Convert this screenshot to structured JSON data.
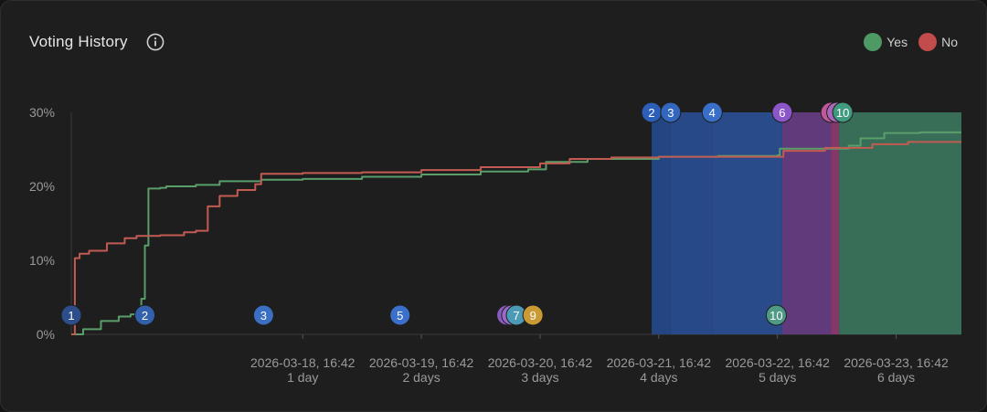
{
  "card": {
    "title": "Voting History"
  },
  "legend": [
    {
      "label": "Yes",
      "color": "#4e9a64"
    },
    {
      "label": "No",
      "color": "#c24c4c"
    }
  ],
  "chart_data": {
    "type": "line",
    "x_unit": "days",
    "xlim": [
      -0.95,
      6.55
    ],
    "ylim": [
      0,
      30
    ],
    "ylabel_ticks": [
      {
        "value": 0,
        "label": "0%"
      },
      {
        "value": 10,
        "label": "10%"
      },
      {
        "value": 20,
        "label": "20%"
      },
      {
        "value": 30,
        "label": "30%"
      }
    ],
    "x_ticks": [
      {
        "x": 1,
        "label": "2026-03-18, 16:42",
        "sublabel": "1 day"
      },
      {
        "x": 2,
        "label": "2026-03-19, 16:42",
        "sublabel": "2 days"
      },
      {
        "x": 3,
        "label": "2026-03-20, 16:42",
        "sublabel": "3 days"
      },
      {
        "x": 4,
        "label": "2026-03-21, 16:42",
        "sublabel": "4 days"
      },
      {
        "x": 5,
        "label": "2026-03-22, 16:42",
        "sublabel": "5 days"
      },
      {
        "x": 6,
        "label": "2026-03-23, 16:42",
        "sublabel": "6 days"
      }
    ],
    "series": [
      {
        "name": "Yes",
        "color": "#5a9e6a",
        "x": [
          -0.95,
          -0.85,
          -0.7,
          -0.55,
          -0.45,
          -0.36,
          -0.33,
          -0.3,
          -0.2,
          -0.15,
          0.1,
          0.3,
          0.65,
          1.0,
          1.5,
          2.0,
          2.5,
          2.9,
          3.05,
          3.4,
          4.0,
          4.5,
          5.0,
          5.02,
          5.6,
          5.7,
          5.9,
          6.2,
          6.55
        ],
        "y": [
          0,
          0.7,
          1.8,
          2.4,
          2.7,
          4.8,
          12,
          19.7,
          19.8,
          20.0,
          20.2,
          20.7,
          20.9,
          21.0,
          21.3,
          21.6,
          22.0,
          22.3,
          23.3,
          23.7,
          24.0,
          24.1,
          24.2,
          25.1,
          25.5,
          26.5,
          27.2,
          27.3,
          27.3
        ]
      },
      {
        "name": "No",
        "color": "#c25b52",
        "x": [
          -0.95,
          -0.92,
          -0.88,
          -0.8,
          -0.65,
          -0.5,
          -0.4,
          -0.2,
          0.0,
          0.1,
          0.2,
          0.3,
          0.45,
          0.6,
          0.65,
          1.0,
          1.5,
          2.0,
          2.5,
          3.0,
          3.25,
          3.6,
          4.0,
          4.5,
          5.0,
          5.05,
          5.4,
          5.8,
          6.1,
          6.55
        ],
        "y": [
          0,
          10.3,
          10.9,
          11.3,
          12.3,
          13.0,
          13.3,
          13.4,
          13.8,
          14.0,
          17.3,
          18.7,
          19.5,
          20.3,
          21.7,
          21.8,
          21.9,
          22.2,
          22.6,
          23.1,
          23.7,
          23.9,
          24.0,
          24.0,
          24.0,
          24.8,
          25.2,
          25.7,
          26.0,
          26.0
        ]
      }
    ],
    "markers_bottom": [
      {
        "x": -0.95,
        "label": "1",
        "color": "#2c4f8c"
      },
      {
        "x": -0.33,
        "label": "2",
        "color": "#3360ad"
      },
      {
        "x": 0.67,
        "label": "3",
        "color": "#3a6fc4"
      },
      {
        "x": 1.82,
        "label": "5",
        "color": "#3a70cc"
      },
      {
        "x": 2.72,
        "label": "",
        "color": "#8b5bc2"
      },
      {
        "x": 2.76,
        "label": "",
        "color": "#9b6ac8"
      },
      {
        "x": 2.8,
        "label": "7",
        "color": "#4b9bb7"
      },
      {
        "x": 2.94,
        "label": "9",
        "color": "#cc9a35"
      },
      {
        "x": 4.99,
        "label": "10",
        "color": "#4e9a85"
      }
    ],
    "markers_top": [
      {
        "x": 3.94,
        "label": "2",
        "color": "#2c5fb7"
      },
      {
        "x": 4.1,
        "label": "3",
        "color": "#3366bd"
      },
      {
        "x": 4.45,
        "label": "4",
        "color": "#3a6fc9"
      },
      {
        "x": 5.04,
        "label": "6",
        "color": "#8b56c8"
      },
      {
        "x": 5.45,
        "label": "",
        "color": "#c1579a"
      },
      {
        "x": 5.5,
        "label": "",
        "color": "#a867b8"
      },
      {
        "x": 5.55,
        "label": "10",
        "color": "#3f9a80"
      }
    ],
    "bands": [
      {
        "x0": 3.94,
        "x1": 4.1,
        "color": "#244a8c",
        "opacity": 0.92
      },
      {
        "x0": 4.1,
        "x1": 4.45,
        "color": "#284e92",
        "opacity": 0.9
      },
      {
        "x0": 4.45,
        "x1": 5.04,
        "color": "#2c5298",
        "opacity": 0.88
      },
      {
        "x0": 5.04,
        "x1": 5.45,
        "color": "#6c3f8c",
        "opacity": 0.85
      },
      {
        "x0": 5.45,
        "x1": 5.52,
        "color": "#8a3a6e",
        "opacity": 0.95
      },
      {
        "x0": 5.52,
        "x1": 6.55,
        "color": "#3d7d63",
        "opacity": 0.85
      }
    ]
  }
}
